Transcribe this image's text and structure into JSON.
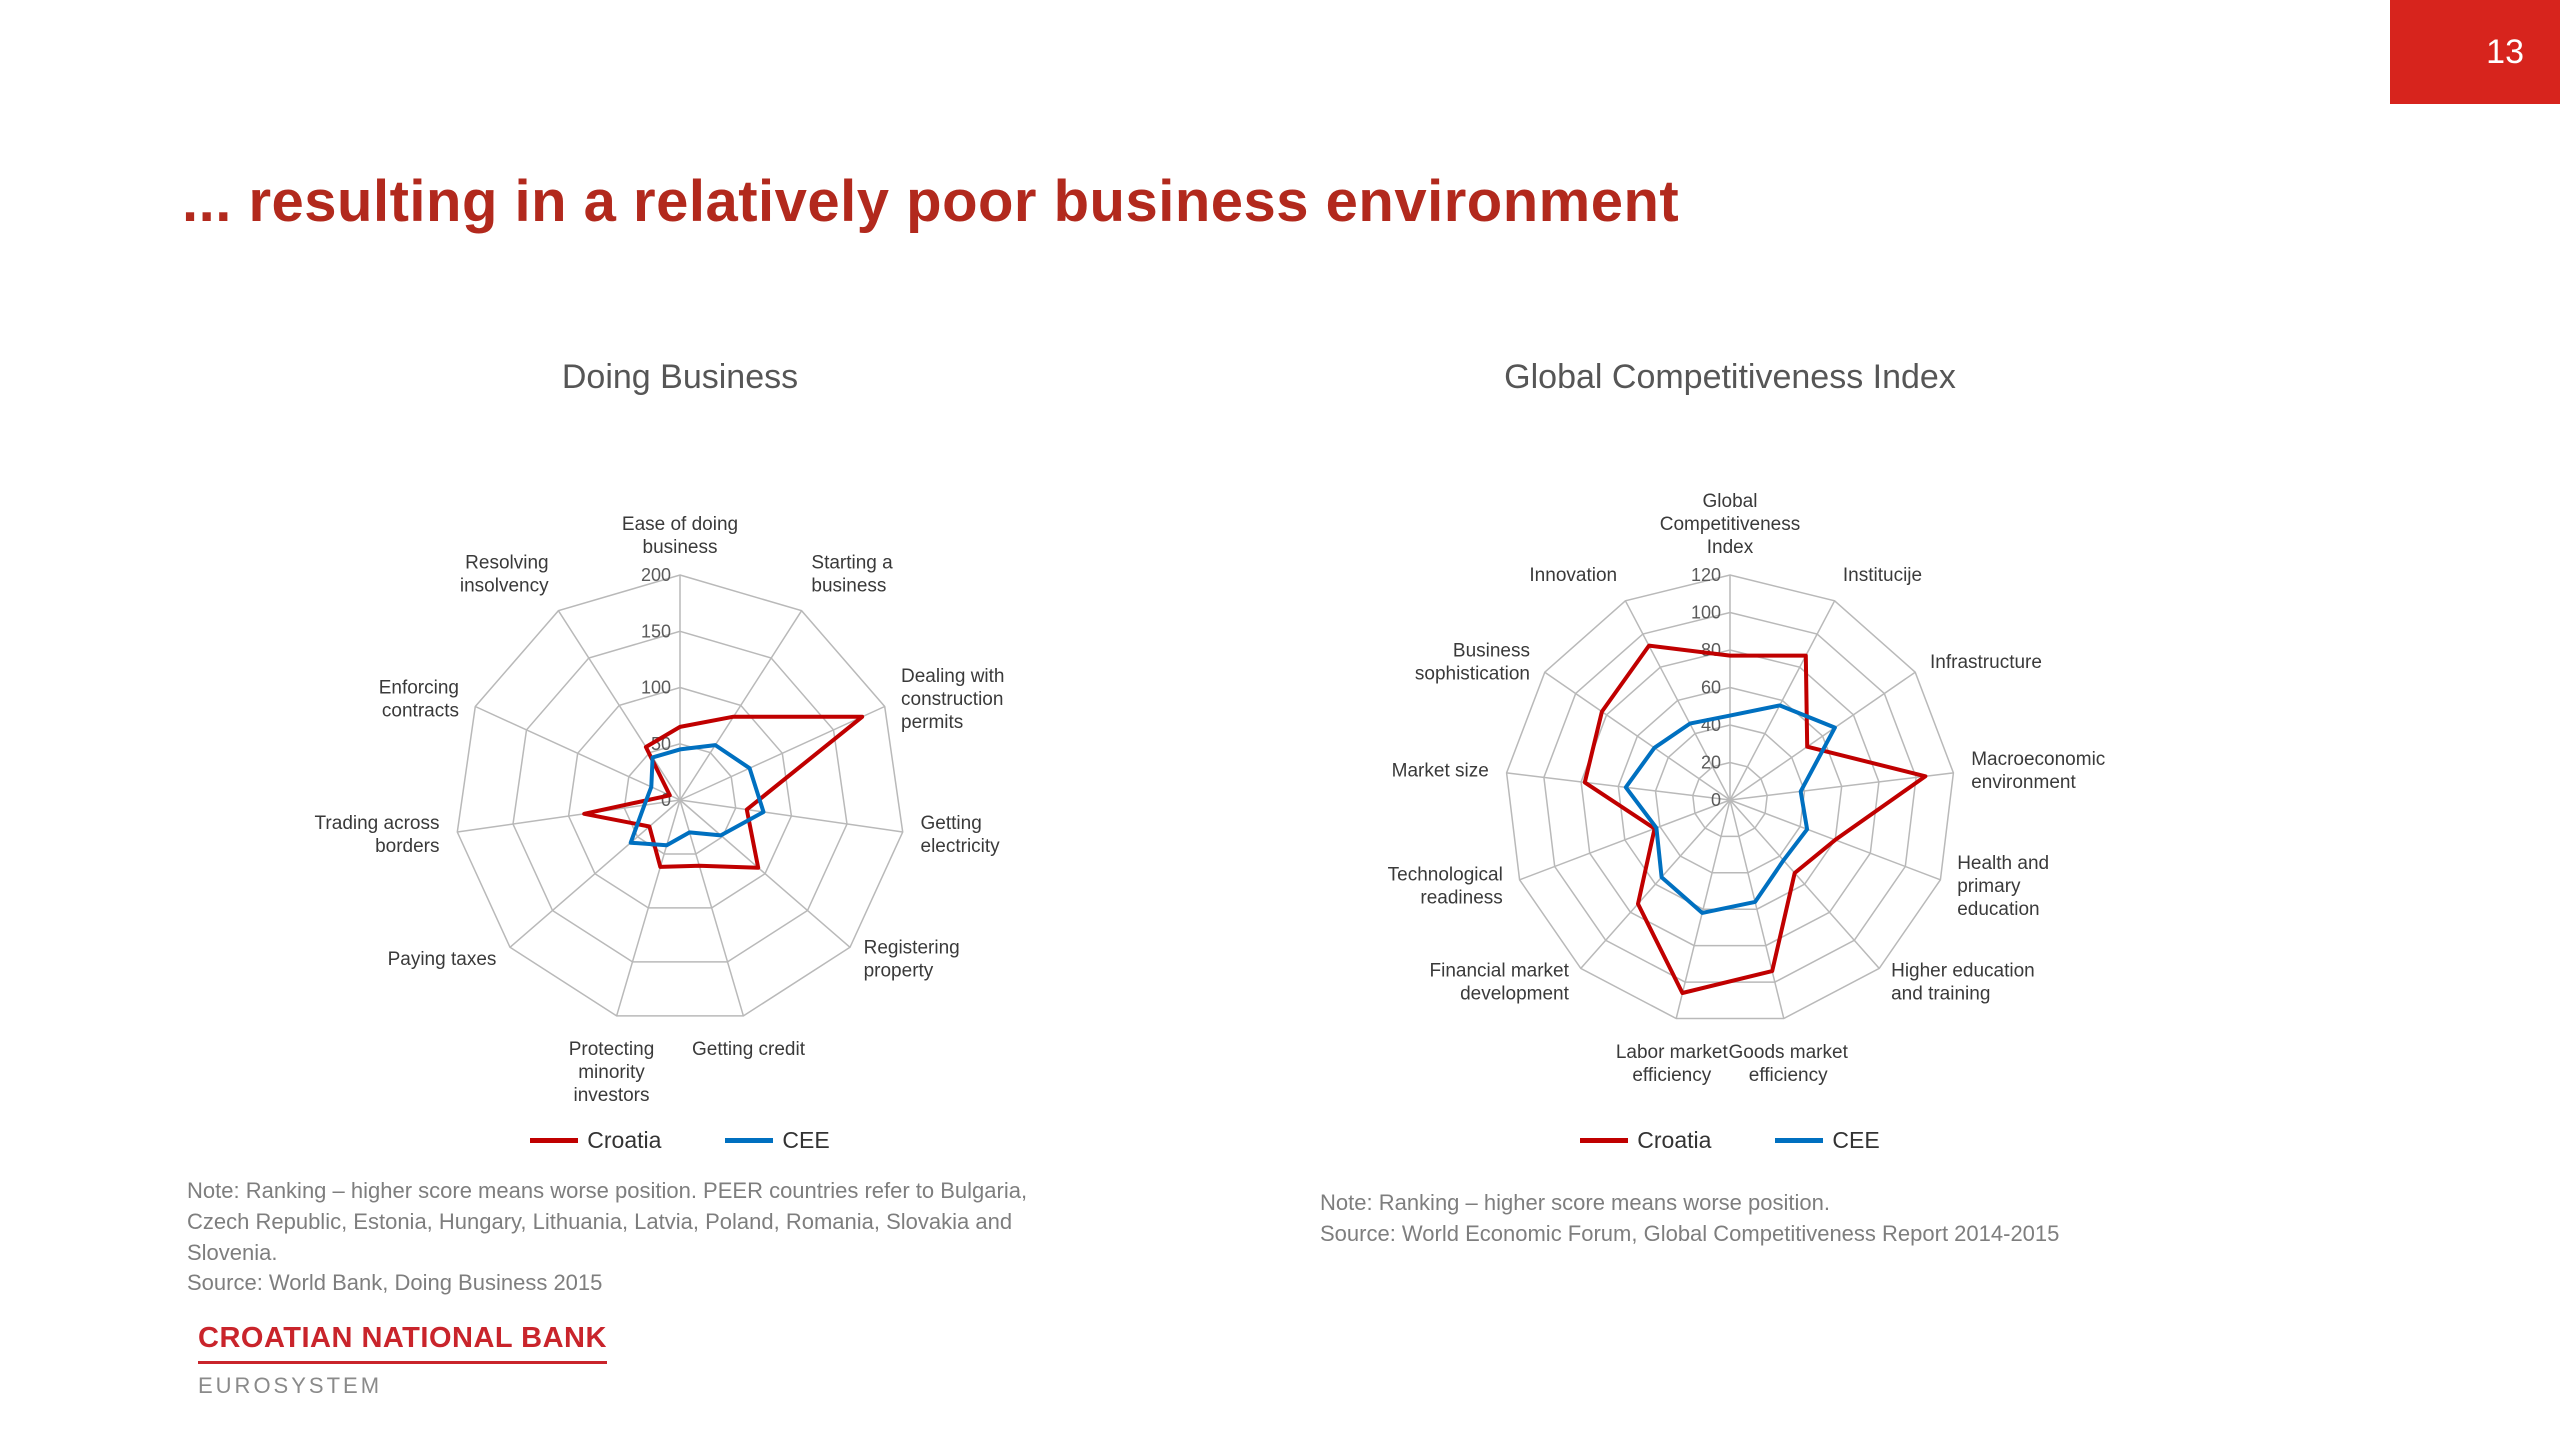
{
  "page": {
    "number": "13"
  },
  "title": "... resulting in a relatively poor business environment",
  "colors": {
    "accent_red": "#D7241D",
    "title_red": "#B2291D",
    "croatia_line": "#C00000",
    "cee_line": "#0070C0",
    "grid": "#b9b9b9",
    "note_gray": "#7e7e7e",
    "footer_red": "#C9242B"
  },
  "chart_data": [
    {
      "type": "radar",
      "title": "Doing Business",
      "categories": [
        "Ease of doing\nbusiness",
        "Starting a\nbusiness",
        "Dealing with\nconstruction\npermits",
        "Getting\nelectricity",
        "Registering\nproperty",
        "Getting credit",
        "Protecting\nminority\ninvestors",
        "Paying taxes",
        "Trading across\nborders",
        "Enforcing\ncontracts",
        "Resolving\ninsolvency"
      ],
      "axis": {
        "min": 0,
        "max": 200,
        "ticks": [
          0,
          50,
          100,
          150,
          200
        ]
      },
      "grid": true,
      "legend_position": "bottom",
      "series": [
        {
          "name": "Croatia",
          "color": "#C00000",
          "values": [
            65,
            88,
            178,
            60,
            92,
            61,
            62,
            36,
            86,
            10,
            56
          ]
        },
        {
          "name": "CEE",
          "color": "#0070C0",
          "values": [
            45,
            58,
            68,
            75,
            48,
            30,
            42,
            58,
            32,
            28,
            45
          ]
        }
      ]
    },
    {
      "type": "radar",
      "title": "Global Competitiveness Index",
      "categories": [
        "Global\nCompetitiveness\nIndex",
        "Institucije",
        "Infrastructure",
        "Macroeconomic\nenvironment",
        "Health and\nprimary\neducation",
        "Higher education\nand training",
        "Goods market\nefficiency",
        "Labor market\nefficiency",
        "Financial market\ndevelopment",
        "Technological\nreadiness",
        "Market size",
        "Business\nsophistication",
        "Innovation"
      ],
      "axis": {
        "min": 0,
        "max": 120,
        "ticks": [
          0,
          20,
          40,
          60,
          80,
          100,
          120
        ]
      },
      "grid": true,
      "legend_position": "bottom",
      "series": [
        {
          "name": "Croatia",
          "color": "#C00000",
          "values": [
            77,
            87,
            50,
            105,
            60,
            52,
            94,
            106,
            74,
            43,
            78,
            83,
            93
          ]
        },
        {
          "name": "CEE",
          "color": "#0070C0",
          "values": [
            45,
            57,
            68,
            38,
            44,
            43,
            56,
            62,
            55,
            42,
            56,
            49,
            46
          ]
        }
      ]
    }
  ],
  "notes": {
    "left": [
      "Note: Ranking – higher score means worse position. PEER countries refer to Bulgaria,",
      "Czech Republic, Estonia, Hungary, Lithuania, Latvia, Poland, Romania, Slovakia and",
      "Slovenia.",
      "Source: World Bank, Doing Business 2015"
    ],
    "right": [
      "Note: Ranking – higher score means worse position.",
      "Source: World Economic Forum, Global Competitiveness Report 2014-2015"
    ]
  },
  "footer": {
    "bank": "CROATIAN NATIONAL BANK",
    "eurosystem": "EUROSYSTEM"
  }
}
